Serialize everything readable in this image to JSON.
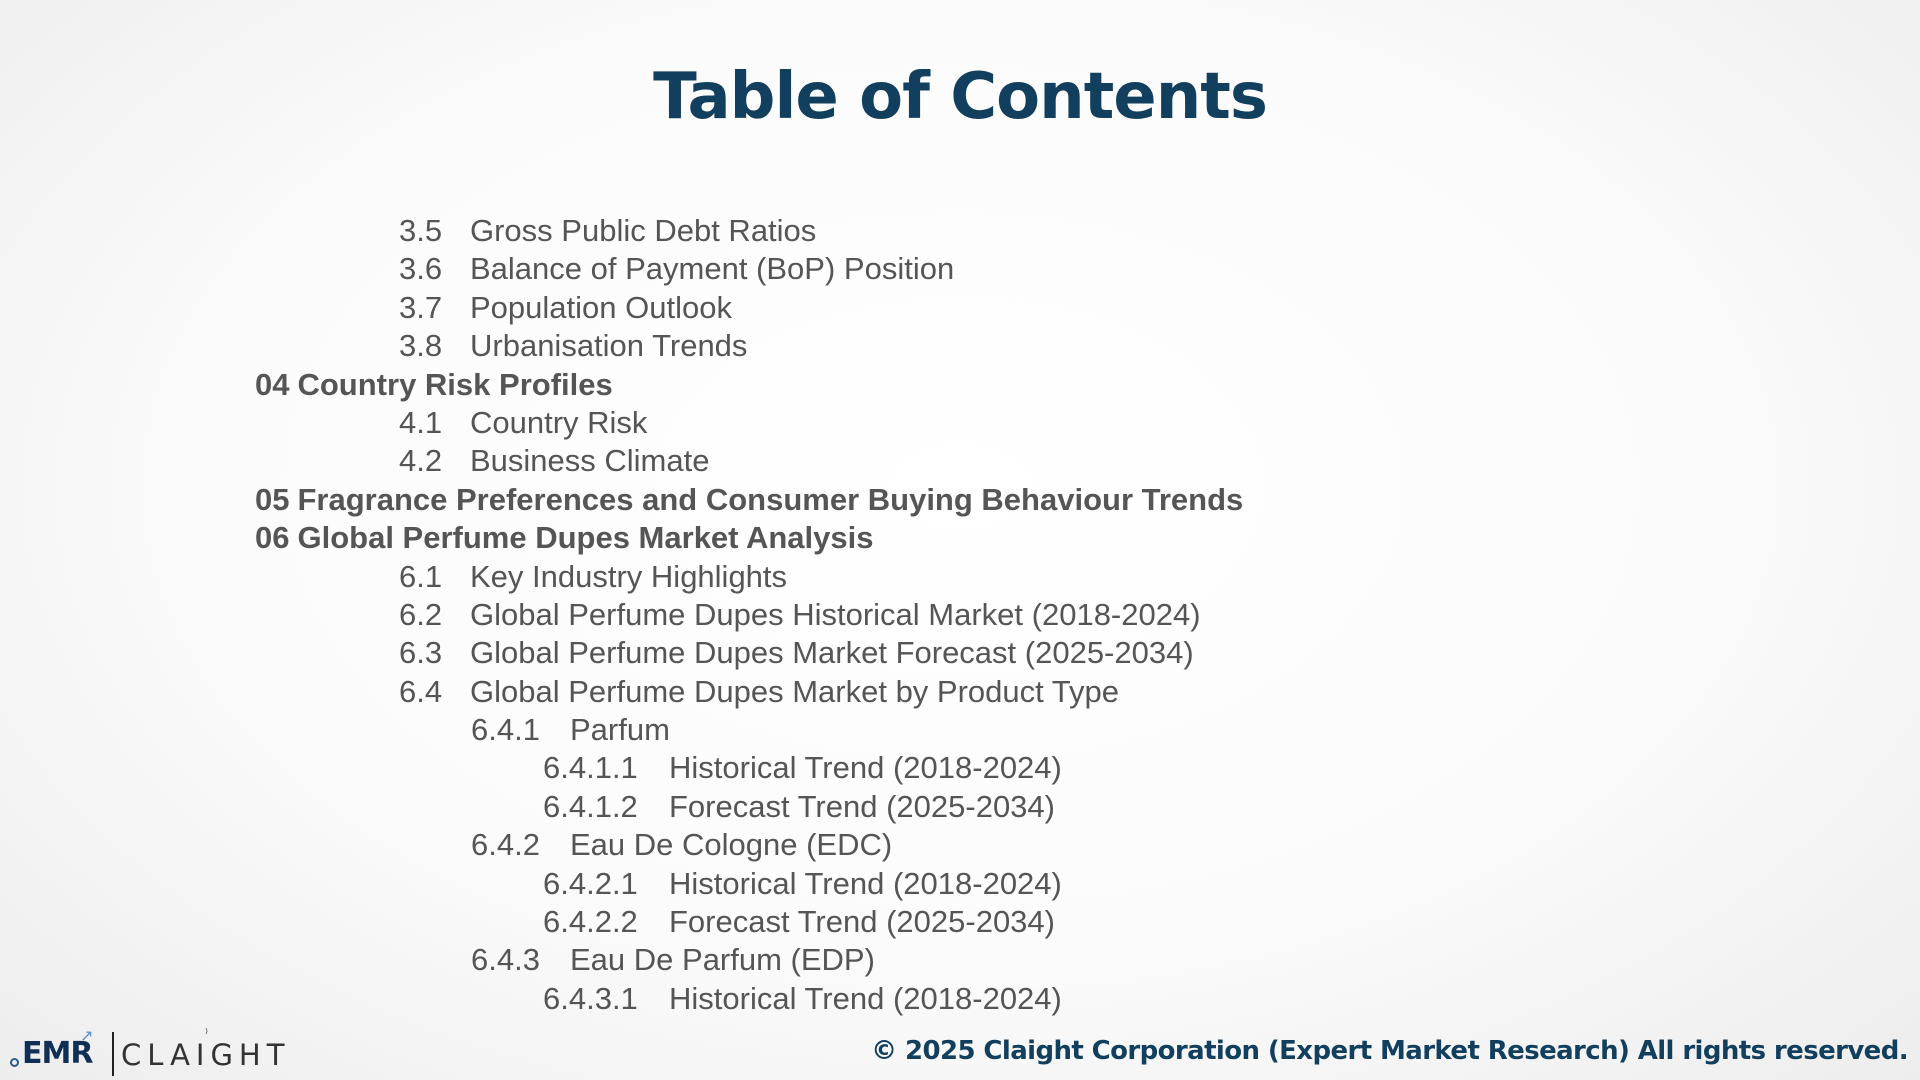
{
  "title": "Table of Contents",
  "toc": [
    {
      "level": 1,
      "num": "3.5",
      "text": "Gross Public Debt Ratios"
    },
    {
      "level": 1,
      "num": "3.6",
      "text": "Balance of Payment (BoP) Position"
    },
    {
      "level": 1,
      "num": "3.7",
      "text": "Population Outlook"
    },
    {
      "level": 1,
      "num": "3.8",
      "text": "Urbanisation Trends"
    },
    {
      "level": 0,
      "num": "04",
      "text": "Country Risk Profiles"
    },
    {
      "level": 1,
      "num": "4.1",
      "text": "Country Risk"
    },
    {
      "level": 1,
      "num": "4.2",
      "text": "Business Climate"
    },
    {
      "level": 0,
      "num": "05",
      "text": "Fragrance Preferences and Consumer Buying Behaviour Trends"
    },
    {
      "level": 0,
      "num": "06",
      "text": "Global Perfume Dupes Market Analysis"
    },
    {
      "level": 1,
      "num": "6.1",
      "text": "Key Industry Highlights"
    },
    {
      "level": 1,
      "num": "6.2",
      "text": "Global Perfume Dupes Historical Market (2018-2024)"
    },
    {
      "level": 1,
      "num": "6.3",
      "text": "Global Perfume Dupes Market Forecast (2025-2034)"
    },
    {
      "level": 1,
      "num": "6.4",
      "text": "Global Perfume Dupes Market by Product Type"
    },
    {
      "level": 2,
      "num": "6.4.1",
      "text": "Parfum"
    },
    {
      "level": 3,
      "num": "6.4.1.1",
      "text": "Historical Trend (2018-2024)"
    },
    {
      "level": 3,
      "num": "6.4.1.2",
      "text": "Forecast Trend (2025-2034)"
    },
    {
      "level": 2,
      "num": "6.4.2",
      "text": "Eau De Cologne (EDC)"
    },
    {
      "level": 3,
      "num": "6.4.2.1",
      "text": "Historical Trend (2018-2024)"
    },
    {
      "level": 3,
      "num": "6.4.2.2",
      "text": "Forecast Trend (2025-2034)"
    },
    {
      "level": 2,
      "num": "6.4.3",
      "text": "Eau De Parfum (EDP)"
    },
    {
      "level": 3,
      "num": "6.4.3.1",
      "text": "Historical Trend (2018-2024)"
    }
  ],
  "footer": {
    "logo_emr": "EMR",
    "logo_claight": "CLAIGHT",
    "copyright": "© 2025 Claight Corporation (Expert Market Research) All rights reserved."
  },
  "colors": {
    "title": "#123f5e",
    "body_text": "#555555",
    "copyright": "#123f5e"
  }
}
